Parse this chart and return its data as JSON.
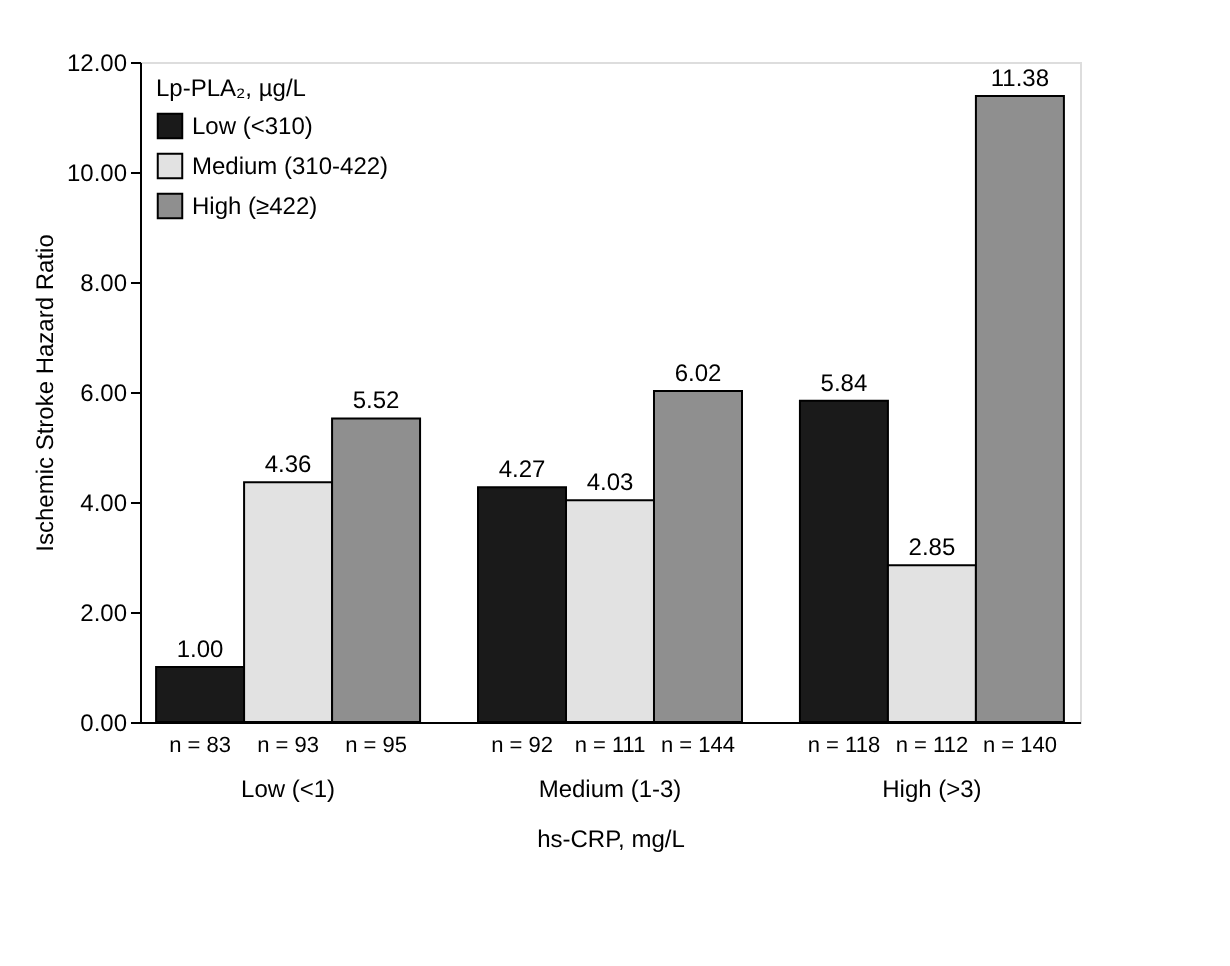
{
  "chart_data": {
    "type": "bar",
    "ylabel": "Ischemic Stroke Hazard Ratio",
    "xlabel": "hs-CRP, mg/L",
    "legend_title": "Lp-PLA₂, µg/L",
    "legend": "top left",
    "categories": [
      "Low (<1)",
      "Medium (1-3)",
      "High (>3)"
    ],
    "series": [
      {
        "name": "Low (<310)",
        "color": "#1a1a1a",
        "values": [
          1.0,
          4.27,
          5.84
        ],
        "value_labels": [
          "1.00",
          "4.27",
          "5.84"
        ]
      },
      {
        "name": "Medium (310-422)",
        "color": "#e2e2e2",
        "values": [
          4.36,
          4.03,
          2.85
        ],
        "value_labels": [
          "4.36",
          "4.03",
          "2.85"
        ]
      },
      {
        "name": "High (≥422)",
        "color": "#8f8f8f",
        "values": [
          5.52,
          6.02,
          11.38
        ],
        "value_labels": [
          "5.52",
          "6.02",
          "11.38"
        ]
      }
    ],
    "ylim": [
      0,
      12
    ],
    "yticks": [
      {
        "value": 0,
        "label": "0.00"
      },
      {
        "value": 2,
        "label": "2.00"
      },
      {
        "value": 4,
        "label": "4.00"
      },
      {
        "value": 6,
        "label": "6.00"
      },
      {
        "value": 8,
        "label": "8.00"
      },
      {
        "value": 10,
        "label": "10.00"
      },
      {
        "value": 12,
        "label": "12.00"
      }
    ],
    "annotations": [
      "n = 83",
      "n = 93",
      "n = 95",
      "n = 92",
      "n = 111",
      "n = 144",
      "n = 118",
      "n = 112",
      "n = 140"
    ],
    "grid": false
  }
}
